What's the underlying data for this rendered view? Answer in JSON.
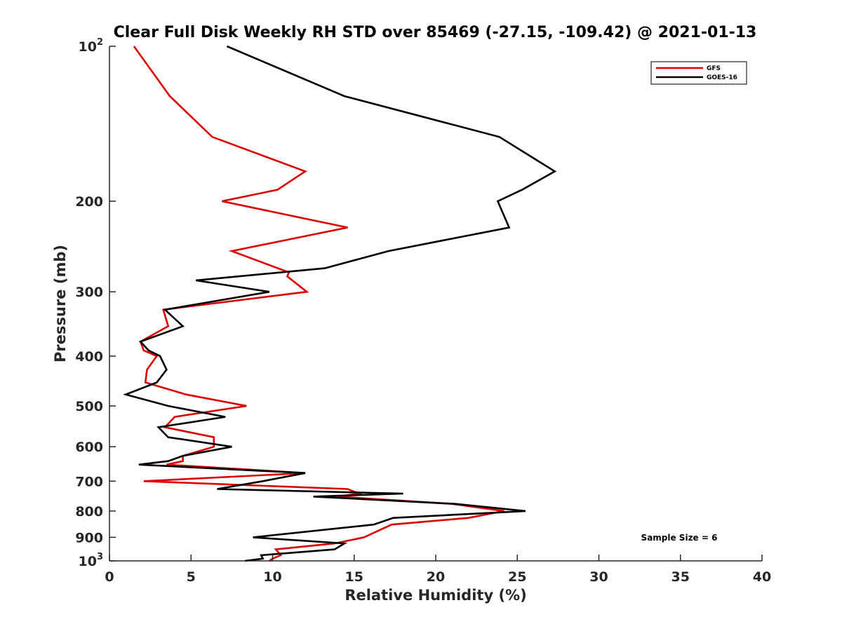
{
  "chart_data": {
    "type": "line",
    "title": "Clear Full Disk Weekly RH STD over 85469 (-27.15, -109.42) @ 2021-01-13",
    "xlabel": "Relative Humidity (%)",
    "ylabel": "Pressure (mb)",
    "xlim": [
      0,
      40
    ],
    "ylim": [
      100,
      1000
    ],
    "y_scale": "log",
    "y_reversed": true,
    "x_ticks": [
      "0",
      "5",
      "10",
      "15",
      "20",
      "25",
      "30",
      "35",
      "40"
    ],
    "y_ticks": [
      {
        "value": 100,
        "base": "10",
        "exp": "2"
      },
      {
        "value": 200,
        "label": "200"
      },
      {
        "value": 300,
        "label": "300"
      },
      {
        "value": 400,
        "label": "400"
      },
      {
        "value": 500,
        "label": "500"
      },
      {
        "value": 600,
        "label": "600"
      },
      {
        "value": 700,
        "label": "700"
      },
      {
        "value": 800,
        "label": "800"
      },
      {
        "value": 900,
        "label": "900"
      },
      {
        "value": 1000,
        "base": "10",
        "exp": "3"
      }
    ],
    "legend": {
      "position": "top-right"
    },
    "annotation": "Sample Size = 6",
    "series": [
      {
        "name": "GFS",
        "color": "#dd0000",
        "points": [
          [
            1.5,
            100
          ],
          [
            3.7,
            125
          ],
          [
            6.3,
            150
          ],
          [
            12.0,
            175
          ],
          [
            10.3,
            190
          ],
          [
            6.9,
            200
          ],
          [
            14.6,
            225
          ],
          [
            7.5,
            250
          ],
          [
            11.0,
            275
          ],
          [
            10.9,
            280
          ],
          [
            12.1,
            300
          ],
          [
            3.3,
            325
          ],
          [
            3.6,
            350
          ],
          [
            1.9,
            375
          ],
          [
            2.1,
            390
          ],
          [
            2.9,
            400
          ],
          [
            2.3,
            425
          ],
          [
            2.2,
            450
          ],
          [
            4.7,
            475
          ],
          [
            8.4,
            500
          ],
          [
            4.0,
            525
          ],
          [
            3.4,
            550
          ],
          [
            6.4,
            575
          ],
          [
            6.4,
            600
          ],
          [
            4.5,
            625
          ],
          [
            4.5,
            640
          ],
          [
            3.5,
            650
          ],
          [
            12.0,
            675
          ],
          [
            2.1,
            700
          ],
          [
            14.6,
            725
          ],
          [
            15.3,
            740
          ],
          [
            14.0,
            750
          ],
          [
            21.0,
            775
          ],
          [
            24.2,
            800
          ],
          [
            22.0,
            825
          ],
          [
            17.3,
            850
          ],
          [
            15.6,
            900
          ],
          [
            13.8,
            925
          ],
          [
            10.2,
            950
          ],
          [
            10.5,
            975
          ],
          [
            10.0,
            990
          ],
          [
            9.8,
            1000
          ]
        ]
      },
      {
        "name": "GOES-16",
        "color": "#000000",
        "points": [
          [
            7.2,
            100
          ],
          [
            14.4,
            125
          ],
          [
            23.9,
            150
          ],
          [
            27.3,
            175
          ],
          [
            25.3,
            190
          ],
          [
            23.8,
            200
          ],
          [
            24.5,
            225
          ],
          [
            17.1,
            250
          ],
          [
            13.2,
            270
          ],
          [
            5.3,
            285
          ],
          [
            9.8,
            300
          ],
          [
            3.4,
            325
          ],
          [
            4.5,
            350
          ],
          [
            1.9,
            375
          ],
          [
            2.4,
            390
          ],
          [
            3.1,
            400
          ],
          [
            3.5,
            425
          ],
          [
            2.9,
            450
          ],
          [
            1.0,
            475
          ],
          [
            3.6,
            500
          ],
          [
            7.1,
            525
          ],
          [
            3.0,
            550
          ],
          [
            3.6,
            575
          ],
          [
            7.5,
            600
          ],
          [
            4.5,
            625
          ],
          [
            3.6,
            640
          ],
          [
            1.8,
            650
          ],
          [
            12.0,
            675
          ],
          [
            9.4,
            700
          ],
          [
            6.6,
            725
          ],
          [
            18.0,
            740
          ],
          [
            12.5,
            750
          ],
          [
            21.2,
            775
          ],
          [
            25.5,
            800
          ],
          [
            17.4,
            825
          ],
          [
            16.2,
            850
          ],
          [
            8.8,
            900
          ],
          [
            14.4,
            925
          ],
          [
            13.8,
            950
          ],
          [
            9.3,
            975
          ],
          [
            9.4,
            990
          ],
          [
            8.3,
            1000
          ]
        ]
      }
    ]
  }
}
